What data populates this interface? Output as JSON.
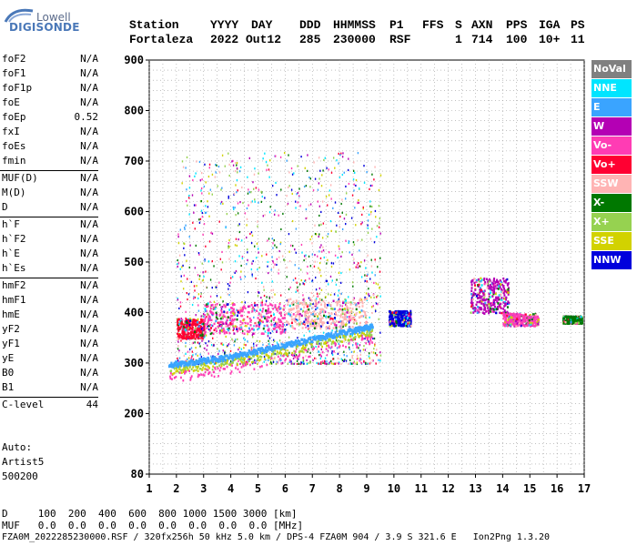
{
  "logo": {
    "line1": "Lowell",
    "line2": "DIGISONDE"
  },
  "header": {
    "labels": [
      "Station",
      "YYYY",
      "DAY",
      "DDD",
      "HHMMSS",
      "P1",
      "FFS",
      "S",
      "AXN",
      "PPS",
      "IGA",
      "PS"
    ],
    "values": [
      "Fortaleza",
      "2022",
      "Out12",
      "285",
      "230000",
      "RSF",
      "",
      "1",
      "714",
      "100",
      "10+",
      "11"
    ]
  },
  "params": [
    [
      [
        "foF2",
        "N/A"
      ],
      [
        "foF1",
        "N/A"
      ],
      [
        "foF1p",
        "N/A"
      ],
      [
        "foE",
        "N/A"
      ],
      [
        "foEp",
        "0.52"
      ],
      [
        "fxI",
        "N/A"
      ],
      [
        "foEs",
        "N/A"
      ],
      [
        "fmin",
        "N/A"
      ]
    ],
    [
      [
        "MUF(D)",
        "N/A"
      ],
      [
        "M(D)",
        "N/A"
      ],
      [
        "D",
        "N/A"
      ]
    ],
    [
      [
        "h`F",
        "N/A"
      ],
      [
        "h`F2",
        "N/A"
      ],
      [
        "h`E",
        "N/A"
      ],
      [
        "h`Es",
        "N/A"
      ]
    ],
    [
      [
        "hmF2",
        "N/A"
      ],
      [
        "hmF1",
        "N/A"
      ],
      [
        "hmE",
        "N/A"
      ],
      [
        "yF2",
        "N/A"
      ],
      [
        "yF1",
        "N/A"
      ],
      [
        "yE",
        "N/A"
      ],
      [
        "B0",
        "N/A"
      ],
      [
        "B1",
        "N/A"
      ]
    ],
    [
      [
        "C-level",
        "44"
      ]
    ]
  ],
  "auto": {
    "line1": "Auto:",
    "line2": "Artist5",
    "line3": "500200"
  },
  "footer": {
    "d_line": "D     100  200  400  600  800 1000 1500 3000 [km]",
    "muf_line": "MUF   0.0  0.0  0.0  0.0  0.0  0.0  0.0  0.0 [MHz]",
    "file_line": "FZA0M_2022285230000.RSF / 320fx256h 50 kHz 5.0 km / DPS-4 FZA0M 904 / 3.9 S 321.6 E   Ion2Png 1.3.20"
  },
  "legend": [
    {
      "label": "NoVal",
      "color": "#808080"
    },
    {
      "label": "NNE",
      "color": "#00e5ff"
    },
    {
      "label": "E",
      "color": "#3aa4ff"
    },
    {
      "label": "W",
      "color": "#b400b4"
    },
    {
      "label": "Vo-",
      "color": "#ff3cb4"
    },
    {
      "label": "Vo+",
      "color": "#ff0032"
    },
    {
      "label": "SSW",
      "color": "#ffb4b4"
    },
    {
      "label": "X-",
      "color": "#007800"
    },
    {
      "label": "X+",
      "color": "#96d250"
    },
    {
      "label": "SSE",
      "color": "#d2d200"
    },
    {
      "label": "NNW",
      "color": "#0000dc"
    }
  ],
  "chart_data": {
    "type": "scatter",
    "xlim": [
      1,
      17
    ],
    "ylim": [
      80,
      900
    ],
    "xticks": [
      1,
      2,
      3,
      4,
      5,
      6,
      7,
      8,
      9,
      10,
      11,
      12,
      13,
      14,
      15,
      16,
      17
    ],
    "yticks": [
      80,
      200,
      300,
      400,
      500,
      600,
      700,
      800,
      900
    ],
    "grid": true,
    "legend_position": "right",
    "trace": {
      "description_free": true,
      "o_trace_x": [
        1.7,
        2.5,
        3.5,
        4.5,
        5.5,
        6.5,
        7.5,
        8.5,
        9.2
      ],
      "o_trace_y": [
        300,
        305,
        312,
        322,
        333,
        345,
        357,
        368,
        376
      ]
    },
    "clusters": [
      {
        "x": [
          2.0,
          3.0
        ],
        "y": [
          350,
          390
        ],
        "color": "#ff0032"
      },
      {
        "x": [
          3.0,
          6.0
        ],
        "y": [
          360,
          420
        ],
        "color": "#ff3cb4"
      },
      {
        "x": [
          6.0,
          9.0
        ],
        "y": [
          370,
          430
        ],
        "color": "#ffb4b4"
      },
      {
        "x": [
          9.8,
          10.6
        ],
        "y": [
          375,
          405
        ],
        "color": "#0000dc"
      },
      {
        "x": [
          12.8,
          14.2
        ],
        "y": [
          400,
          470
        ],
        "color": "#b400b4"
      },
      {
        "x": [
          14.0,
          15.3
        ],
        "y": [
          375,
          400
        ],
        "color": "#ff3cb4"
      },
      {
        "x": [
          16.2,
          16.9
        ],
        "y": [
          380,
          395
        ],
        "color": "#007800"
      }
    ]
  }
}
